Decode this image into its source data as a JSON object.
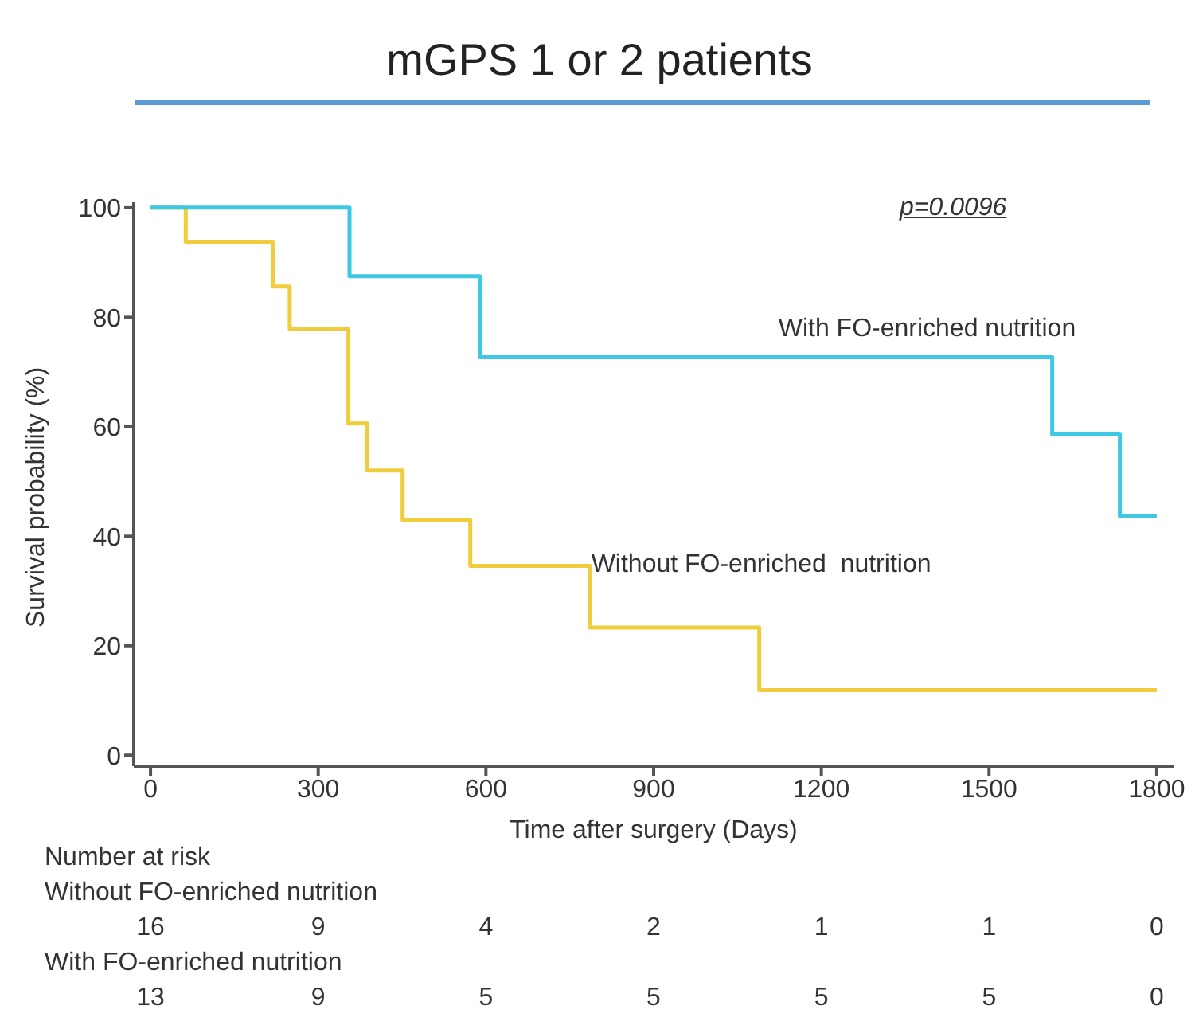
{
  "chart_data": {
    "type": "step",
    "title": "mGPS 1 or 2 patients",
    "xlabel": "Time after surgery (Days)",
    "ylabel": "Survival probability (%)",
    "xlim": [
      -30,
      1830
    ],
    "xticks": [
      0,
      300,
      600,
      900,
      1200,
      1500,
      1800
    ],
    "ylim": [
      -2,
      101
    ],
    "yticks": [
      0,
      20,
      40,
      60,
      80,
      100
    ],
    "marker": "none",
    "line_style": "solid",
    "series": [
      {
        "name": "With FO-enriched nutrition",
        "color": "#3fc8e4",
        "x": [
          0,
          356,
          589,
          1613,
          1734,
          1800
        ],
        "values": [
          100,
          87.5,
          72.7,
          58.6,
          43.7,
          43.7
        ]
      },
      {
        "name": "Without FO-enriched  nutrition",
        "color": "#f0cd3c",
        "x": [
          0,
          63,
          219,
          249,
          354,
          388,
          451,
          572,
          786,
          1089,
          1800
        ],
        "values": [
          100,
          93.8,
          85.6,
          77.8,
          60.6,
          52,
          42.9,
          34.6,
          23.3,
          11.9,
          11.9
        ]
      }
    ],
    "annotations": [
      "p=0.0096",
      "Number at risk",
      "Without FO-enriched nutrition",
      "16 9 4 2 1 1 0",
      "With FO-enriched nutrition",
      "13 9 5 5 5 5 0"
    ]
  }
}
